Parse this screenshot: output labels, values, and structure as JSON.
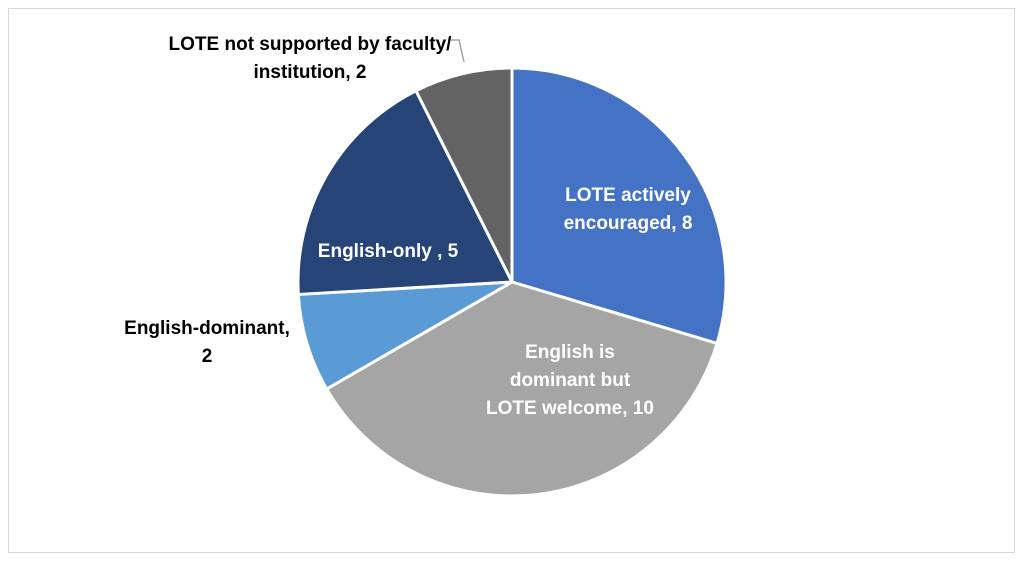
{
  "chart_data": {
    "type": "pie",
    "title": "",
    "slices": [
      {
        "label_lines": [
          "LOTE actively",
          "encouraged, 8"
        ],
        "value": 8,
        "color": "#4472c4",
        "label_color": "#ffffff"
      },
      {
        "label_lines": [
          "English is",
          "dominant but",
          "LOTE welcome, 10"
        ],
        "value": 10,
        "color": "#a5a5a5",
        "label_color": "#ffffff"
      },
      {
        "label_lines": [
          "English-dominant,",
          "2"
        ],
        "value": 2,
        "color": "#5b9bd5",
        "label_color": "#000000"
      },
      {
        "label_lines": [
          "English-only , 5"
        ],
        "value": 5,
        "color": "#264478",
        "label_color": "#ffffff"
      },
      {
        "label_lines": [
          "LOTE not supported  by faculty/",
          "institution, 2"
        ],
        "value": 2,
        "color": "#636363",
        "label_color": "#000000"
      }
    ],
    "start": "12 o'clock",
    "direction": "clockwise",
    "legend": "none"
  }
}
